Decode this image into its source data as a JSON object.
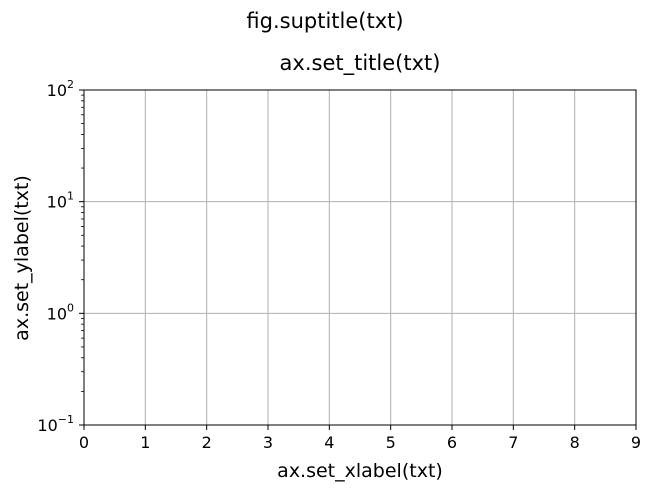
{
  "chart_data": {
    "type": "line",
    "suptitle": "fig.suptitle(txt)",
    "title": "ax.set_title(txt)",
    "xlabel": "ax.set_xlabel(txt)",
    "ylabel": "ax.set_ylabel(txt)",
    "xlim": [
      0,
      9
    ],
    "xticks": [
      0,
      1,
      2,
      3,
      4,
      5,
      6,
      7,
      8,
      9
    ],
    "yscale": "log",
    "ylim": [
      0.1,
      100
    ],
    "yticks": [
      {
        "value": 0.1,
        "base": "10",
        "exp": "−1"
      },
      {
        "value": 1,
        "base": "10",
        "exp": "0"
      },
      {
        "value": 10,
        "base": "10",
        "exp": "1"
      },
      {
        "value": 100,
        "base": "10",
        "exp": "2"
      }
    ],
    "grid": true,
    "series": [],
    "colors": {
      "grid": "#b0b0b0",
      "axes": "#000000",
      "background": "#ffffff"
    }
  }
}
